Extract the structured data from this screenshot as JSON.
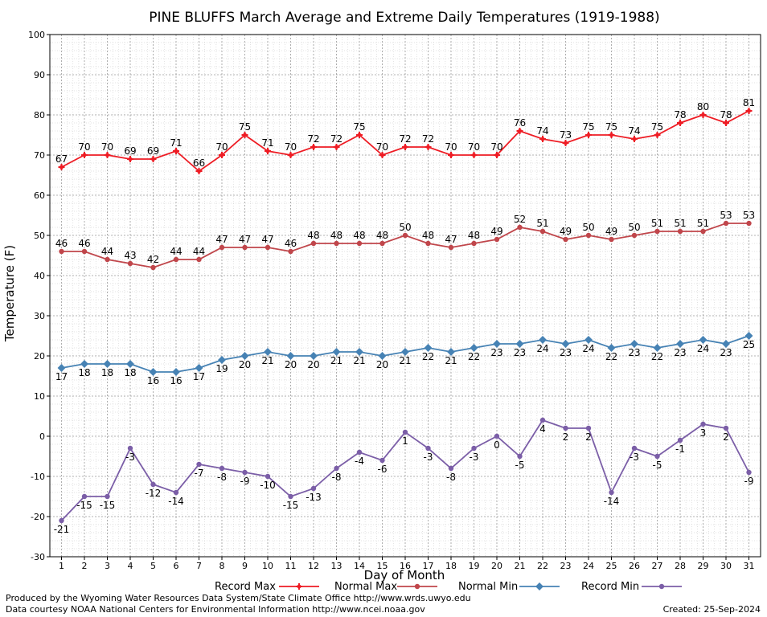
{
  "chart_data": {
    "type": "line",
    "title": "PINE BLUFFS March Average and Extreme Daily Temperatures (1919-1988)",
    "xlabel": "Day of Month",
    "ylabel": "Temperature (F)",
    "ylim": [
      -30,
      100
    ],
    "ytick_step": 10,
    "grid": true,
    "legend_position": "bottom",
    "categories": [
      1,
      2,
      3,
      4,
      5,
      6,
      7,
      8,
      9,
      10,
      11,
      12,
      13,
      14,
      15,
      16,
      17,
      18,
      19,
      20,
      21,
      22,
      23,
      24,
      25,
      26,
      27,
      28,
      29,
      30,
      31
    ],
    "series": [
      {
        "name": "Record Max",
        "color": "#ee1c24",
        "values": [
          67,
          70,
          70,
          69,
          69,
          71,
          66,
          70,
          75,
          71,
          70,
          72,
          72,
          75,
          70,
          72,
          72,
          70,
          70,
          70,
          76,
          74,
          73,
          75,
          75,
          74,
          75,
          78,
          80,
          78,
          81
        ]
      },
      {
        "name": "Normal Max",
        "color": "#c0464b",
        "values": [
          46,
          46,
          44,
          43,
          42,
          44,
          44,
          47,
          47,
          47,
          46,
          48,
          48,
          48,
          48,
          50,
          48,
          47,
          48,
          49,
          52,
          51,
          49,
          50,
          49,
          50,
          51,
          51,
          51,
          53,
          53
        ]
      },
      {
        "name": "Normal Min",
        "color": "#4682b4",
        "values": [
          17,
          18,
          18,
          18,
          16,
          16,
          17,
          19,
          20,
          21,
          20,
          20,
          21,
          21,
          20,
          21,
          22,
          21,
          22,
          23,
          23,
          24,
          23,
          24,
          22,
          23,
          22,
          23,
          24,
          23,
          25
        ]
      },
      {
        "name": "Record Min",
        "color": "#7b5ea7",
        "values": [
          -21,
          -15,
          -15,
          -3,
          -12,
          -14,
          -7,
          -8,
          -9,
          -10,
          -15,
          -13,
          -8,
          -4,
          -6,
          1,
          -3,
          -8,
          -3,
          0,
          -5,
          4,
          2,
          2,
          -14,
          -3,
          -5,
          -1,
          3,
          2,
          -9
        ]
      }
    ]
  },
  "footer": {
    "line1": "Produced by the Wyoming Water Resources Data System/State Climate Office http://www.wrds.uwyo.edu",
    "line2": "Data courtesy NOAA National Centers for Environmental Information http://www.ncei.noaa.gov",
    "created": "Created:  25-Sep-2024"
  }
}
